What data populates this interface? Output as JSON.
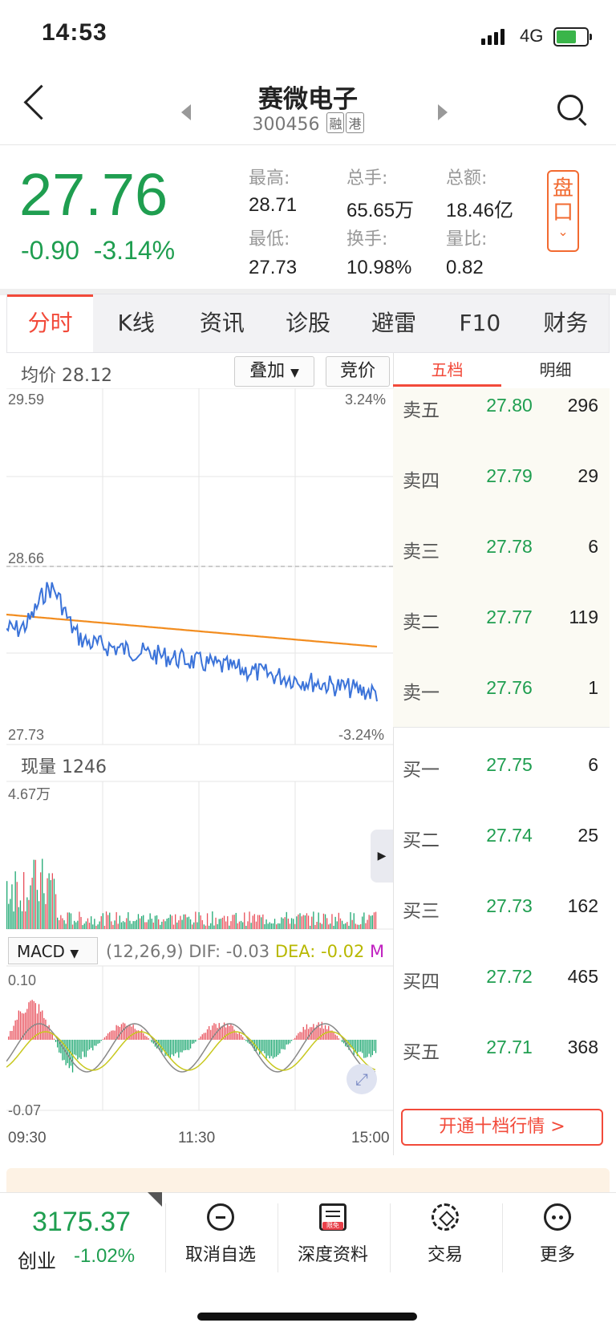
{
  "status": {
    "time": "14:53",
    "network": "4G"
  },
  "nav": {
    "title": "赛微电子",
    "code": "300456",
    "tags": [
      "融",
      "港"
    ]
  },
  "quote": {
    "price": "27.76",
    "change": "-0.90",
    "change_pct": "-3.14%",
    "stats": [
      {
        "label": "最高:",
        "value": "28.71"
      },
      {
        "label": "总手:",
        "value": "65.65万"
      },
      {
        "label": "总额:",
        "value": "18.46亿"
      },
      {
        "label": "最低:",
        "value": "27.73"
      },
      {
        "label": "换手:",
        "value": "10.98%"
      },
      {
        "label": "量比:",
        "value": "0.82"
      }
    ],
    "pankou_label": "盘口"
  },
  "tabs": [
    "分时",
    "K线",
    "资讯",
    "诊股",
    "避雷",
    "F10",
    "财务"
  ],
  "chart": {
    "avg_label": "均价 28.12",
    "overlay_label": "叠加",
    "bid_label": "竞价",
    "y_top": "29.59",
    "y_mid": "28.66",
    "y_bot": "27.73",
    "pct_top": "3.24%",
    "pct_bot": "-3.24%",
    "vol_label": "现量 1246",
    "vol_max": "4.67万",
    "macd_select": "MACD",
    "macd_params": "(12,26,9)",
    "macd_dif": "DIF: -0.03",
    "macd_dea": "DEA: -0.02",
    "macd_m": "M",
    "macd_top": "0.10",
    "macd_bot": "-0.07",
    "time_start": "09:30",
    "time_mid": "11:30",
    "time_end": "15:00",
    "colors": {
      "price": "#3b73d9",
      "avg": "#f28c1e",
      "up": "#e8505b",
      "down": "#1ea872",
      "dea": "#c8c81e"
    }
  },
  "orderbook": {
    "tabs": [
      "五档",
      "明细"
    ],
    "sells": [
      {
        "name": "卖五",
        "price": "27.80",
        "qty": "296"
      },
      {
        "name": "卖四",
        "price": "27.79",
        "qty": "29"
      },
      {
        "name": "卖三",
        "price": "27.78",
        "qty": "6"
      },
      {
        "name": "卖二",
        "price": "27.77",
        "qty": "119"
      },
      {
        "name": "卖一",
        "price": "27.76",
        "qty": "1"
      }
    ],
    "buys": [
      {
        "name": "买一",
        "price": "27.75",
        "qty": "6"
      },
      {
        "name": "买二",
        "price": "27.74",
        "qty": "25"
      },
      {
        "name": "买三",
        "price": "27.73",
        "qty": "162"
      },
      {
        "name": "买四",
        "price": "27.72",
        "qty": "465"
      },
      {
        "name": "买五",
        "price": "27.71",
        "qty": "368"
      }
    ],
    "ten_level_button": "开通十档行情 >"
  },
  "bottom": {
    "index_value": "3175.37",
    "index_name": "创业",
    "index_change": "-1.02%",
    "items": [
      {
        "label": "取消自选",
        "icon": "minus-circle-icon"
      },
      {
        "label": "深度资料",
        "icon": "document-icon",
        "badge": "限免"
      },
      {
        "label": "交易",
        "icon": "exchange-icon"
      },
      {
        "label": "更多",
        "icon": "more-dots-icon"
      }
    ]
  }
}
